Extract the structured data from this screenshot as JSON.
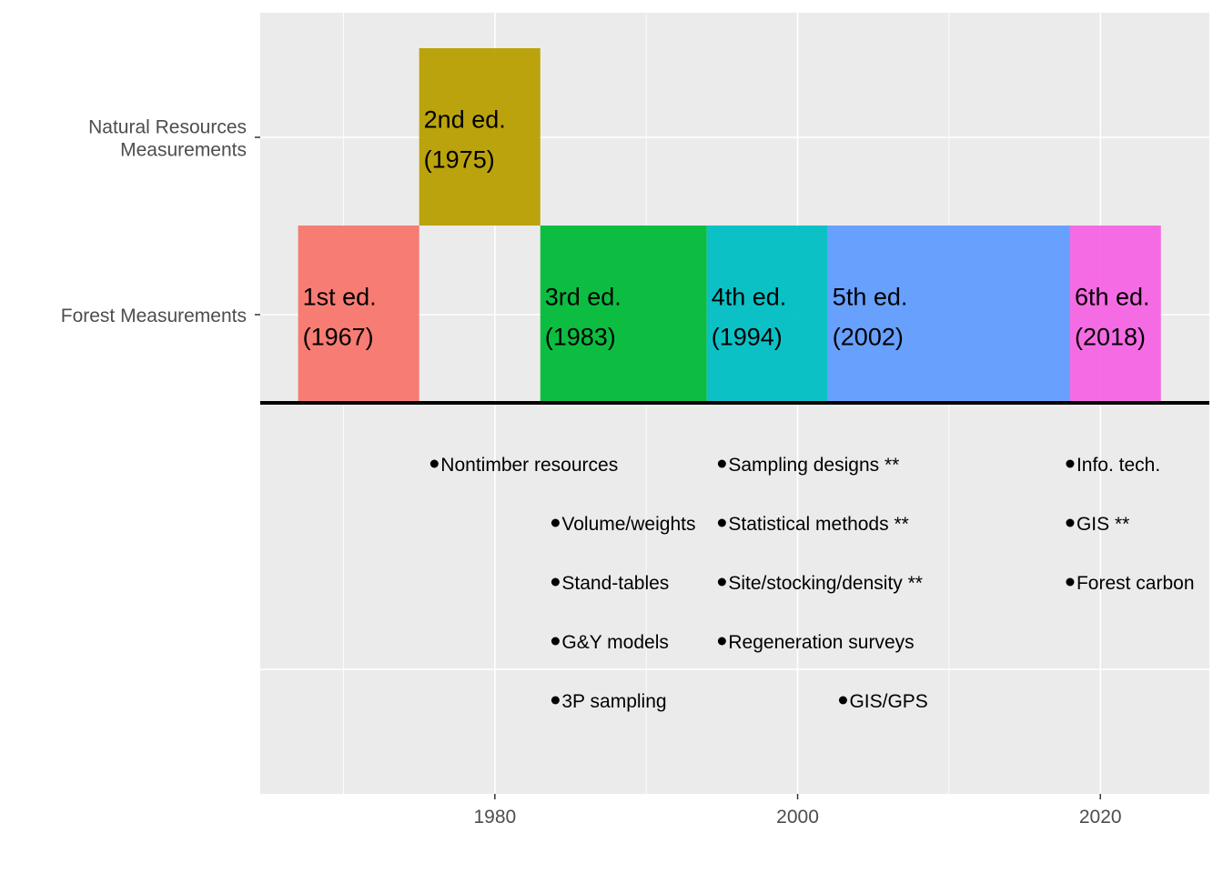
{
  "chart_data": {
    "type": "timeline",
    "xlim": [
      1964.5,
      2027.2
    ],
    "x_ticks": [
      1980,
      2000,
      2020
    ],
    "x_tick_labels": [
      "1980",
      "2000",
      "2020"
    ],
    "y_categories": [
      "Forest Measurements",
      "Natural Resources\nMeasurements"
    ],
    "grid": true,
    "legend": "none",
    "colors": {
      "panel_bg": "#EBEBEB",
      "grid": "#FFFFFF",
      "baseline": "#000000",
      "point": "#000000"
    },
    "editions": [
      {
        "label": "1st ed.\n(1967)",
        "start": 1967,
        "end": 1975,
        "title": "Forest Measurements",
        "color": "#F8766D"
      },
      {
        "label": "2nd ed.\n(1975)",
        "start": 1975,
        "end": 1983,
        "title": "Natural Resources\nMeasurements",
        "color": "#B79F00"
      },
      {
        "label": "3rd ed.\n(1983)",
        "start": 1983,
        "end": 1994,
        "title": "Forest Measurements",
        "color": "#00BA38"
      },
      {
        "label": "4th ed.\n(1994)",
        "start": 1994,
        "end": 2002,
        "title": "Forest Measurements",
        "color": "#00BFC4"
      },
      {
        "label": "5th ed.\n(2002)",
        "start": 2002,
        "end": 2018,
        "title": "Forest Measurements",
        "color": "#619CFF"
      },
      {
        "label": "6th ed.\n(2018)",
        "start": 2018,
        "end": 2024,
        "title": "Forest Measurements",
        "color": "#F564E3"
      }
    ],
    "topics": [
      {
        "label": "Nontimber resources",
        "x": 1976,
        "row": 1
      },
      {
        "label": "Volume/weights",
        "x": 1984,
        "row": 2
      },
      {
        "label": "Stand-tables",
        "x": 1984,
        "row": 3
      },
      {
        "label": "G&Y models",
        "x": 1984,
        "row": 4
      },
      {
        "label": "3P sampling",
        "x": 1984,
        "row": 5
      },
      {
        "label": "Sampling designs **",
        "x": 1995,
        "row": 1
      },
      {
        "label": "Statistical methods **",
        "x": 1995,
        "row": 2
      },
      {
        "label": "Site/stocking/density **",
        "x": 1995,
        "row": 3
      },
      {
        "label": "Regeneration surveys",
        "x": 1995,
        "row": 4
      },
      {
        "label": "GIS/GPS",
        "x": 2003,
        "row": 5
      },
      {
        "label": "Info. tech.",
        "x": 2018,
        "row": 1
      },
      {
        "label": "GIS **",
        "x": 2018,
        "row": 2
      },
      {
        "label": "Forest carbon",
        "x": 2018,
        "row": 3
      }
    ]
  }
}
